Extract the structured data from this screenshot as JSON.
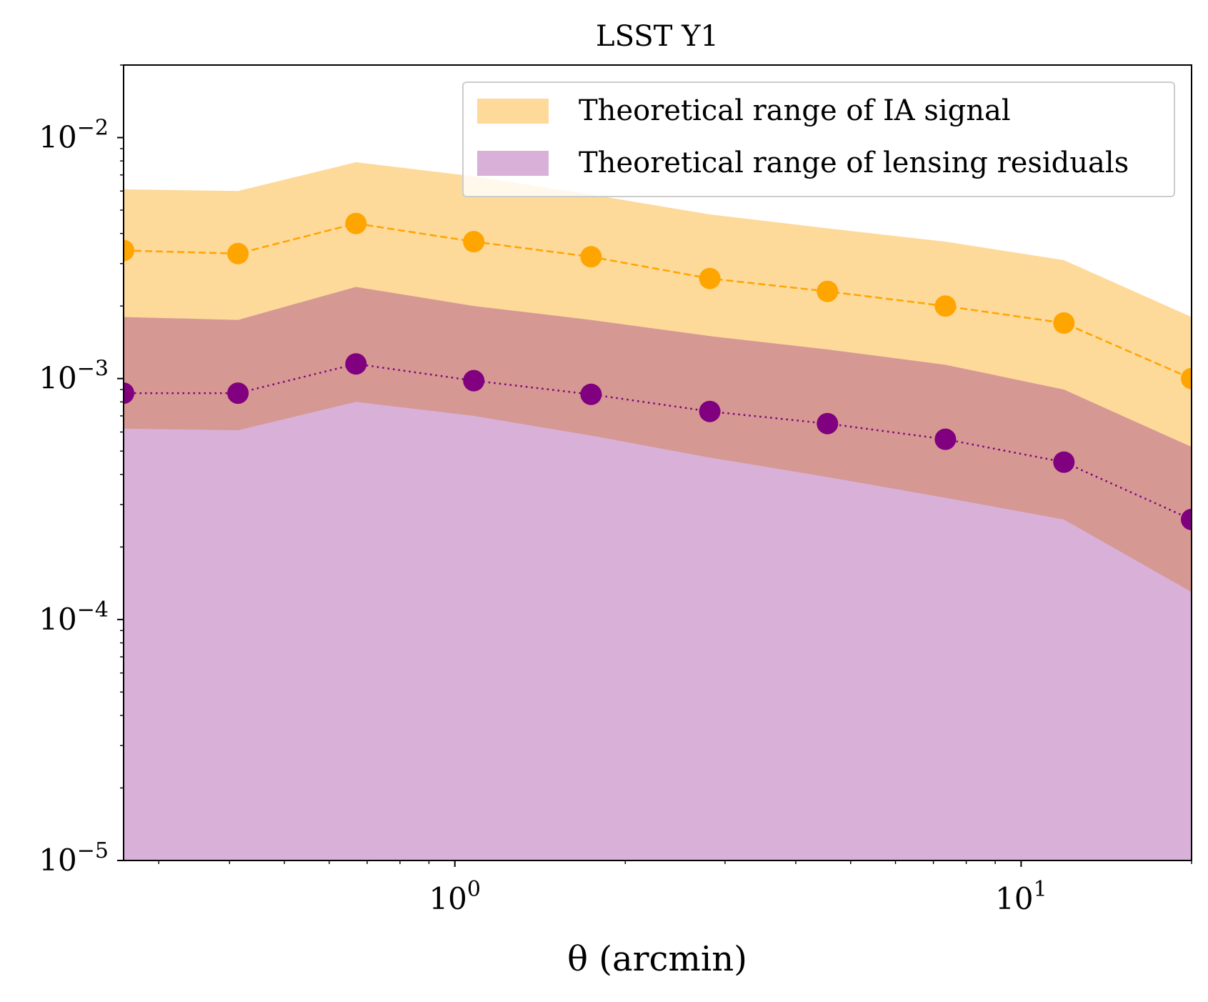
{
  "chart_data": {
    "type": "area",
    "title": "LSST Y1",
    "xlabel": "θ (arcmin)",
    "ylabel": "",
    "xscale": "log",
    "yscale": "log",
    "xlim": [
      0.26,
      20.0
    ],
    "ylim": [
      1e-05,
      0.02
    ],
    "grid": false,
    "legend": {
      "placement": "top-right"
    },
    "x_ticks": [
      {
        "value": 1,
        "base": "10",
        "exp": "0"
      },
      {
        "value": 10,
        "base": "10",
        "exp": "1"
      }
    ],
    "y_ticks": [
      {
        "value": 1e-05,
        "base": "10",
        "exp": "−5"
      },
      {
        "value": 0.0001,
        "base": "10",
        "exp": "−4"
      },
      {
        "value": 0.001,
        "base": "10",
        "exp": "−3"
      },
      {
        "value": 0.01,
        "base": "10",
        "exp": "−2"
      }
    ],
    "x": [
      0.26,
      0.414,
      0.669,
      1.08,
      1.74,
      2.82,
      4.55,
      7.35,
      11.9,
      20.0
    ],
    "bands": [
      {
        "name": "Theoretical range of IA signal",
        "color": "#FDD99A",
        "lower": [
          0.00062,
          0.00061,
          0.0008,
          0.0007,
          0.00058,
          0.00047,
          0.00039,
          0.00032,
          0.00026,
          0.00013
        ],
        "upper": [
          0.0061,
          0.006,
          0.0079,
          0.0069,
          0.0058,
          0.0048,
          0.0042,
          0.0037,
          0.0031,
          0.0018
        ]
      },
      {
        "name": "Theoretical range of lensing residuals",
        "color": "#D8B0D8",
        "lower": [
          1e-05,
          1e-05,
          1e-05,
          1e-05,
          1e-05,
          1e-05,
          1e-05,
          1e-05,
          1e-05,
          1e-05
        ],
        "upper": [
          0.0018,
          0.00175,
          0.0024,
          0.002,
          0.00175,
          0.0015,
          0.00132,
          0.00114,
          0.0009,
          0.00052
        ]
      }
    ],
    "overlap_color": "#D69893",
    "series": [
      {
        "style": "dashed",
        "color": "#FFA500",
        "values": [
          0.0034,
          0.0033,
          0.0044,
          0.0037,
          0.0032,
          0.0026,
          0.0023,
          0.002,
          0.0017,
          0.001
        ]
      },
      {
        "style": "dotted",
        "color": "#800080",
        "values": [
          0.00087,
          0.00087,
          0.00115,
          0.00098,
          0.00086,
          0.00073,
          0.00065,
          0.00056,
          0.00045,
          0.00026
        ]
      }
    ]
  }
}
